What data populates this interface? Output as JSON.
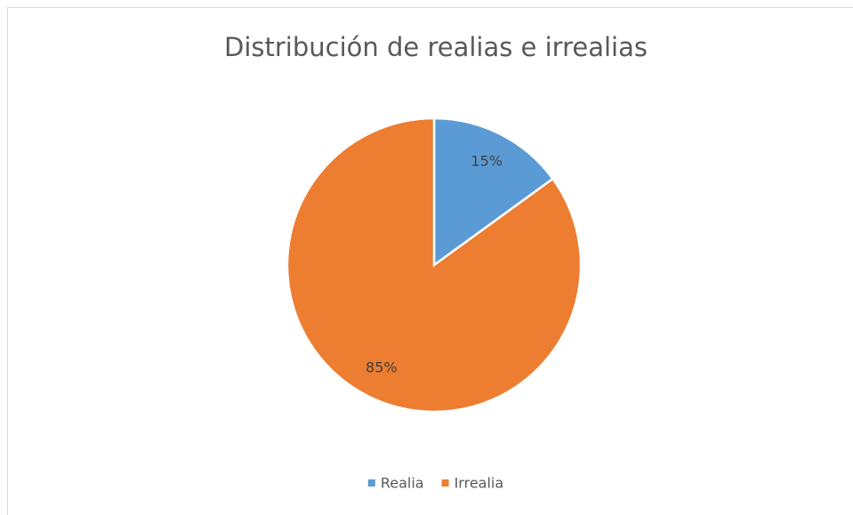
{
  "chart_data": {
    "type": "pie",
    "title": "Distribución de realias e irrealias",
    "categories": [
      "Realia",
      "Irrealia"
    ],
    "values": [
      15,
      85
    ],
    "value_labels": [
      "15%",
      "85%"
    ],
    "colors": [
      "#5b9bd5",
      "#ed7d31"
    ],
    "legend": "bottom"
  }
}
